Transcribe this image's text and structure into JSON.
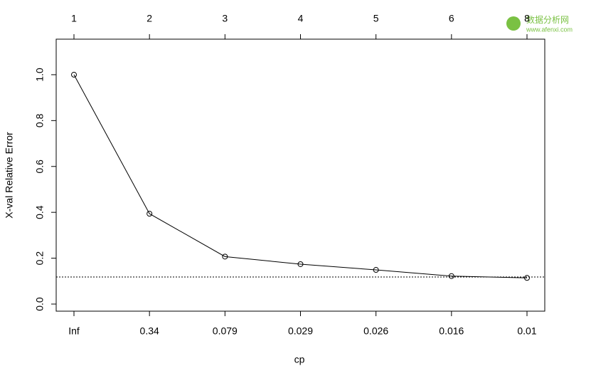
{
  "chart_data": {
    "type": "line",
    "x_label": "cp",
    "y_label": "X-val Relative Error",
    "categories": [
      "Inf",
      "0.34",
      "0.079",
      "0.029",
      "0.026",
      "0.016",
      "0.01"
    ],
    "top_categories": [
      "1",
      "2",
      "3",
      "4",
      "5",
      "6",
      "8"
    ],
    "values": [
      1.0,
      0.394,
      0.207,
      0.174,
      0.149,
      0.122,
      0.114
    ],
    "color": "#000000",
    "reference_line": 0.118,
    "ylim": [
      -0.031,
      1.155
    ],
    "yticks": [
      {
        "value": 0,
        "label": "0.0"
      },
      0.2,
      0.4,
      0.6,
      0.8,
      {
        "value": 1,
        "label": "1.0"
      }
    ]
  },
  "watermark": {
    "name": "数据分析网",
    "url": "www.afenxi.com"
  }
}
